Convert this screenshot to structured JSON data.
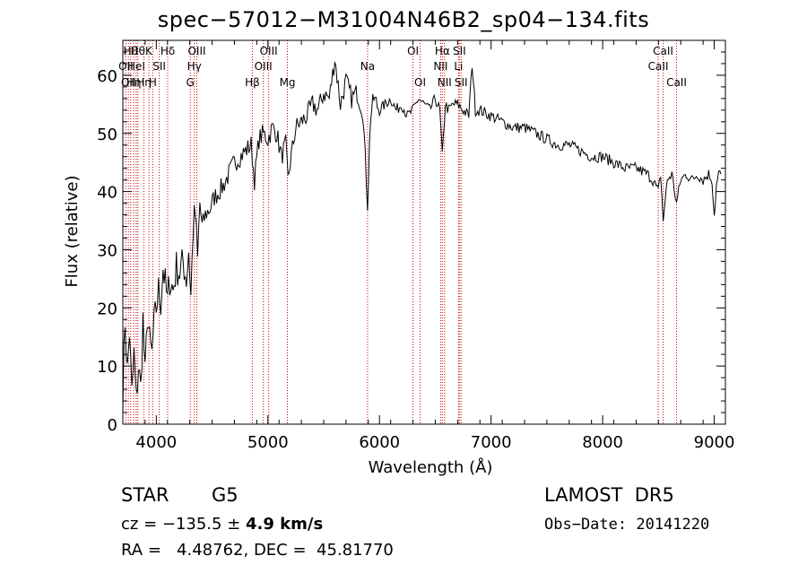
{
  "chart_data": {
    "type": "line",
    "title": "spec−57012−M31004N46B2_sp04−134.fits",
    "xlabel": "Wavelength (Å)",
    "ylabel": "Flux (relative)",
    "xlim": [
      3700,
      9100
    ],
    "ylim": [
      0,
      66
    ],
    "xticks": [
      4000,
      5000,
      6000,
      7000,
      8000,
      9000
    ],
    "yticks": [
      0,
      10,
      20,
      30,
      40,
      50,
      60
    ],
    "grid": false,
    "series": [
      {
        "values": [
          [
            3700,
            5
          ],
          [
            3720,
            18
          ],
          [
            3740,
            9
          ],
          [
            3760,
            16
          ],
          [
            3780,
            5
          ],
          [
            3800,
            12
          ],
          [
            3820,
            4
          ],
          [
            3840,
            10
          ],
          [
            3860,
            6
          ],
          [
            3880,
            18
          ],
          [
            3900,
            8
          ],
          [
            3920,
            19
          ],
          [
            3940,
            14
          ],
          [
            3960,
            12
          ],
          [
            3980,
            17
          ],
          [
            4000,
            20
          ],
          [
            4020,
            23
          ],
          [
            4040,
            21
          ],
          [
            4060,
            27
          ],
          [
            4080,
            24
          ],
          [
            4100,
            21
          ],
          [
            4120,
            25
          ],
          [
            4150,
            23
          ],
          [
            4180,
            27
          ],
          [
            4210,
            26
          ],
          [
            4240,
            28
          ],
          [
            4270,
            25
          ],
          [
            4290,
            30
          ],
          [
            4310,
            22
          ],
          [
            4330,
            34
          ],
          [
            4350,
            36
          ],
          [
            4370,
            28
          ],
          [
            4390,
            38
          ],
          [
            4410,
            34
          ],
          [
            4440,
            36
          ],
          [
            4480,
            37
          ],
          [
            4520,
            39
          ],
          [
            4560,
            40
          ],
          [
            4600,
            41
          ],
          [
            4650,
            43
          ],
          [
            4700,
            45
          ],
          [
            4750,
            46
          ],
          [
            4800,
            47
          ],
          [
            4850,
            48
          ],
          [
            4880,
            42
          ],
          [
            4920,
            49
          ],
          [
            4960,
            50
          ],
          [
            5000,
            49
          ],
          [
            5040,
            51
          ],
          [
            5080,
            50
          ],
          [
            5120,
            46
          ],
          [
            5160,
            48
          ],
          [
            5180,
            42
          ],
          [
            5200,
            45
          ],
          [
            5250,
            51
          ],
          [
            5300,
            52
          ],
          [
            5350,
            53
          ],
          [
            5400,
            55
          ],
          [
            5450,
            54
          ],
          [
            5500,
            57
          ],
          [
            5550,
            56
          ],
          [
            5600,
            63
          ],
          [
            5650,
            55
          ],
          [
            5700,
            59
          ],
          [
            5750,
            56
          ],
          [
            5800,
            57
          ],
          [
            5850,
            54
          ],
          [
            5893,
            38
          ],
          [
            5920,
            53
          ],
          [
            5950,
            56
          ],
          [
            6000,
            54
          ],
          [
            6050,
            55
          ],
          [
            6100,
            56
          ],
          [
            6150,
            54
          ],
          [
            6200,
            55
          ],
          [
            6250,
            53
          ],
          [
            6300,
            54
          ],
          [
            6350,
            56
          ],
          [
            6400,
            55
          ],
          [
            6450,
            54
          ],
          [
            6500,
            56
          ],
          [
            6540,
            54
          ],
          [
            6563,
            46
          ],
          [
            6590,
            55
          ],
          [
            6620,
            54
          ],
          [
            6660,
            55
          ],
          [
            6700,
            55
          ],
          [
            6750,
            54
          ],
          [
            6800,
            53
          ],
          [
            6830,
            62
          ],
          [
            6860,
            54
          ],
          [
            6900,
            54
          ],
          [
            7000,
            53
          ],
          [
            7100,
            52
          ],
          [
            7200,
            51
          ],
          [
            7300,
            51
          ],
          [
            7400,
            50
          ],
          [
            7500,
            49
          ],
          [
            7600,
            48
          ],
          [
            7700,
            48
          ],
          [
            7800,
            47
          ],
          [
            7900,
            46
          ],
          [
            8000,
            46
          ],
          [
            8100,
            45
          ],
          [
            8200,
            44
          ],
          [
            8300,
            44
          ],
          [
            8400,
            43
          ],
          [
            8450,
            42
          ],
          [
            8498,
            40
          ],
          [
            8520,
            43
          ],
          [
            8542,
            35
          ],
          [
            8580,
            42
          ],
          [
            8620,
            43
          ],
          [
            8662,
            38
          ],
          [
            8700,
            42
          ],
          [
            8750,
            43
          ],
          [
            8800,
            42
          ],
          [
            8850,
            43
          ],
          [
            8900,
            42
          ],
          [
            8950,
            43
          ],
          [
            8980,
            42
          ],
          [
            9000,
            36
          ],
          [
            9020,
            41
          ],
          [
            9040,
            43
          ],
          [
            9060,
            43
          ]
        ]
      }
    ],
    "lines": [
      {
        "x": 3727,
        "row": 2,
        "label": "OII"
      },
      {
        "x": 3750,
        "row": 3,
        "label": "OII"
      },
      {
        "x": 3770,
        "row": 1,
        "label": "Hθ"
      },
      {
        "x": 3798,
        "row": 3,
        "label": "Hη"
      },
      {
        "x": 3820,
        "row": 2,
        "label": "HeI"
      },
      {
        "x": 3835,
        "row": 1,
        "label": "Hθ"
      },
      {
        "x": 3889,
        "row": 3,
        "label": "Hη"
      },
      {
        "x": 3933,
        "row": 1,
        "label": "K"
      },
      {
        "x": 3968,
        "row": 3,
        "label": "H"
      },
      {
        "x": 4026,
        "row": 2,
        "label": "SII"
      },
      {
        "x": 4102,
        "row": 1,
        "label": "Hδ"
      },
      {
        "x": 4304,
        "row": 3,
        "label": "G"
      },
      {
        "x": 4340,
        "row": 2,
        "label": "Hγ"
      },
      {
        "x": 4363,
        "row": 1,
        "label": "OIII"
      },
      {
        "x": 4861,
        "row": 3,
        "label": "Hβ"
      },
      {
        "x": 4959,
        "row": 2,
        "label": "OIII"
      },
      {
        "x": 5007,
        "row": 1,
        "label": "OIII"
      },
      {
        "x": 5175,
        "row": 3,
        "label": "Mg"
      },
      {
        "x": 5893,
        "row": 2,
        "label": "Na"
      },
      {
        "x": 6300,
        "row": 1,
        "label": "OI"
      },
      {
        "x": 6364,
        "row": 3,
        "label": "OI"
      },
      {
        "x": 6548,
        "row": 2,
        "label": "NII"
      },
      {
        "x": 6563,
        "row": 1,
        "label": "Hα"
      },
      {
        "x": 6583,
        "row": 3,
        "label": "NII"
      },
      {
        "x": 6708,
        "row": 2,
        "label": "Li"
      },
      {
        "x": 6716,
        "row": 1,
        "label": "SII"
      },
      {
        "x": 6731,
        "row": 3,
        "label": "SII"
      },
      {
        "x": 8498,
        "row": 2,
        "label": "CaII"
      },
      {
        "x": 8542,
        "row": 1,
        "label": "CaII"
      },
      {
        "x": 8662,
        "row": 3,
        "label": "CaII"
      }
    ],
    "colors": {
      "spectrum": "#000000",
      "lines": "#cc0000",
      "axes": "#000000"
    }
  },
  "info": {
    "object_class": "STAR",
    "subclass": "G5",
    "survey": "LAMOST  DR5",
    "cz_prefix": "cz = −135.5 ± ",
    "cz_err": "4.9 km/s",
    "obs_date": "Obs−Date: 20141220",
    "coords": "RA =   4.48762, DEC =  45.81770"
  }
}
